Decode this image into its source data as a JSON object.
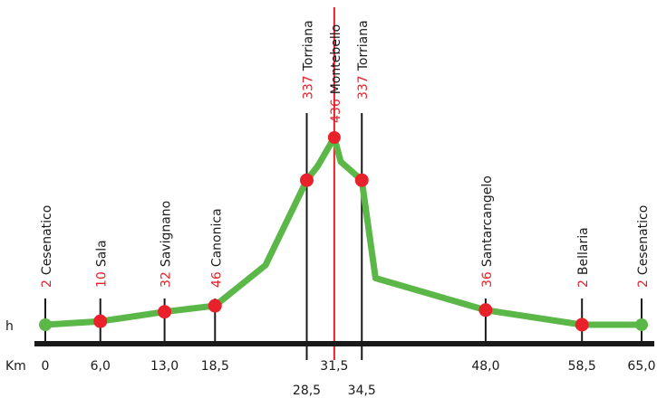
{
  "chart_data": {
    "type": "line",
    "title": "",
    "xlabel": "Km",
    "ylabel": "h",
    "colors": {
      "line": "#5bb848",
      "endpoint": "#5bb848",
      "marker": "#e8212a",
      "axis": "#1a1a1a",
      "elevation_text": "#e8212a",
      "name_text": "#1a1a1a"
    },
    "profile": [
      {
        "km": 0,
        "h": 2
      },
      {
        "km": 6.0,
        "h": 10
      },
      {
        "km": 13.0,
        "h": 32
      },
      {
        "km": 18.5,
        "h": 46
      },
      {
        "km": 24.0,
        "h": 140
      },
      {
        "km": 28.5,
        "h": 337
      },
      {
        "km": 29.7,
        "h": 370
      },
      {
        "km": 31.5,
        "h": 436
      },
      {
        "km": 32.2,
        "h": 380
      },
      {
        "km": 34.5,
        "h": 337
      },
      {
        "km": 36.0,
        "h": 110
      },
      {
        "km": 48.0,
        "h": 36
      },
      {
        "km": 58.5,
        "h": 2
      },
      {
        "km": 65.0,
        "h": 2
      }
    ],
    "points": [
      {
        "km": 0,
        "h": 2,
        "elev": "2",
        "name": "Cesenatico",
        "km_label": "0",
        "kind": "end"
      },
      {
        "km": 6.0,
        "h": 10,
        "elev": "10",
        "name": "Sala",
        "km_label": "6,0",
        "kind": "mid"
      },
      {
        "km": 13.0,
        "h": 32,
        "elev": "32",
        "name": "Savignano",
        "km_label": "13,0",
        "kind": "mid"
      },
      {
        "km": 18.5,
        "h": 46,
        "elev": "46",
        "name": "Canonica",
        "km_label": "18,5",
        "kind": "mid"
      },
      {
        "km": 28.5,
        "h": 337,
        "elev": "337",
        "name": "Torriana",
        "km_label": "28,5",
        "kind": "mid",
        "label_row": 2
      },
      {
        "km": 31.5,
        "h": 436,
        "elev": "436",
        "name": "Montebello",
        "km_label": "31,5",
        "kind": "summit"
      },
      {
        "km": 34.5,
        "h": 337,
        "elev": "337",
        "name": "Torriana",
        "km_label": "34,5",
        "kind": "mid",
        "label_row": 2
      },
      {
        "km": 48.0,
        "h": 36,
        "elev": "36",
        "name": "Santarcangelo",
        "km_label": "48,0",
        "kind": "mid"
      },
      {
        "km": 58.5,
        "h": 2,
        "elev": "2",
        "name": "Bellaria",
        "km_label": "58,5",
        "kind": "mid"
      },
      {
        "km": 65.0,
        "h": 2,
        "elev": "2",
        "name": "Cesenatico",
        "km_label": "65,0",
        "kind": "end"
      }
    ]
  }
}
